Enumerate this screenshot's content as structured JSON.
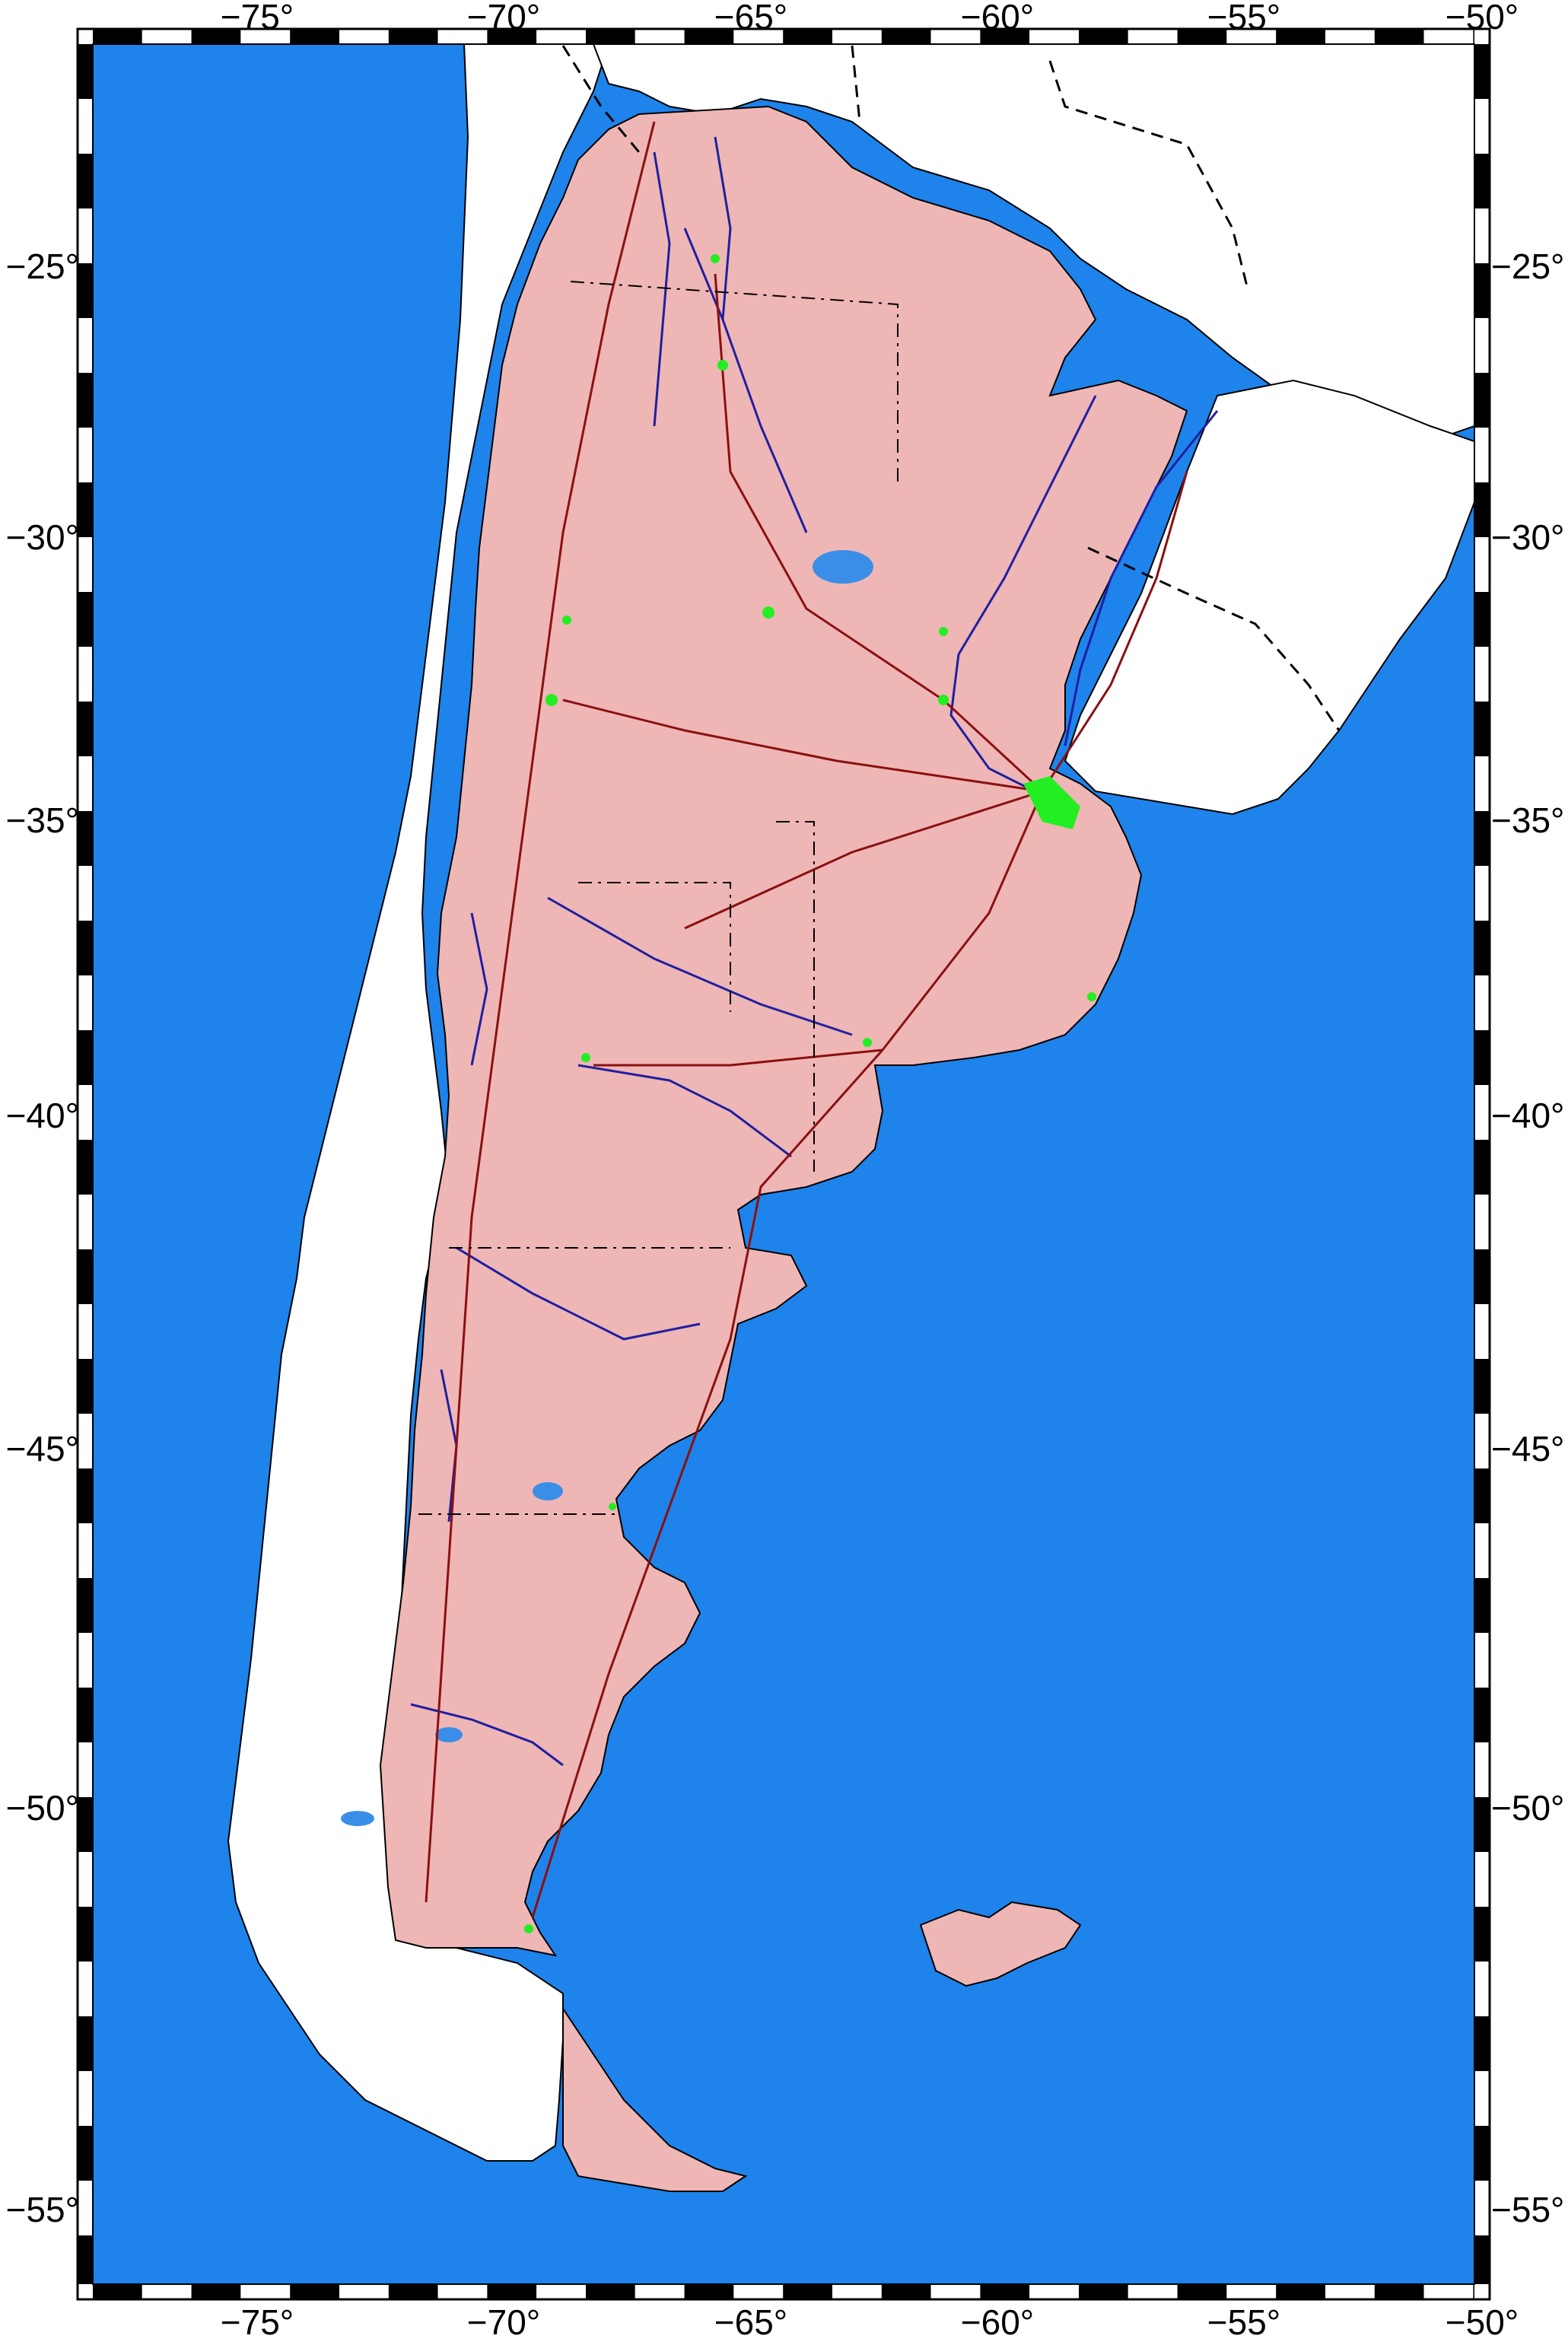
{
  "map": {
    "extent": {
      "lon_min": -78,
      "lon_max": -50,
      "lat_min": -56.4,
      "lat_max": -21.7
    },
    "colors": {
      "ocean": "#1e83ea",
      "foreign_land": "#ffffff",
      "argentina_land": "#efb6b6",
      "rivers": "#1f1fa0",
      "lakes": "#3a8ee8",
      "roads": "#8b1010",
      "borders": "#000000",
      "urban_areas": "#22ee22",
      "frame": "#000000"
    },
    "top_ticks": [
      "−75°",
      "−70°",
      "−65°",
      "−60°",
      "−55°",
      "−50°"
    ],
    "bottom_ticks": [
      "−75°",
      "−70°",
      "−65°",
      "−60°",
      "−55°",
      "−50°"
    ],
    "left_ticks": [
      "−25°",
      "−30°",
      "−35°",
      "−40°",
      "−45°",
      "−50°",
      "−55°"
    ],
    "right_ticks": [
      "−25°",
      "−30°",
      "−35°",
      "−40°",
      "−45°",
      "−50°",
      "−55°"
    ]
  }
}
